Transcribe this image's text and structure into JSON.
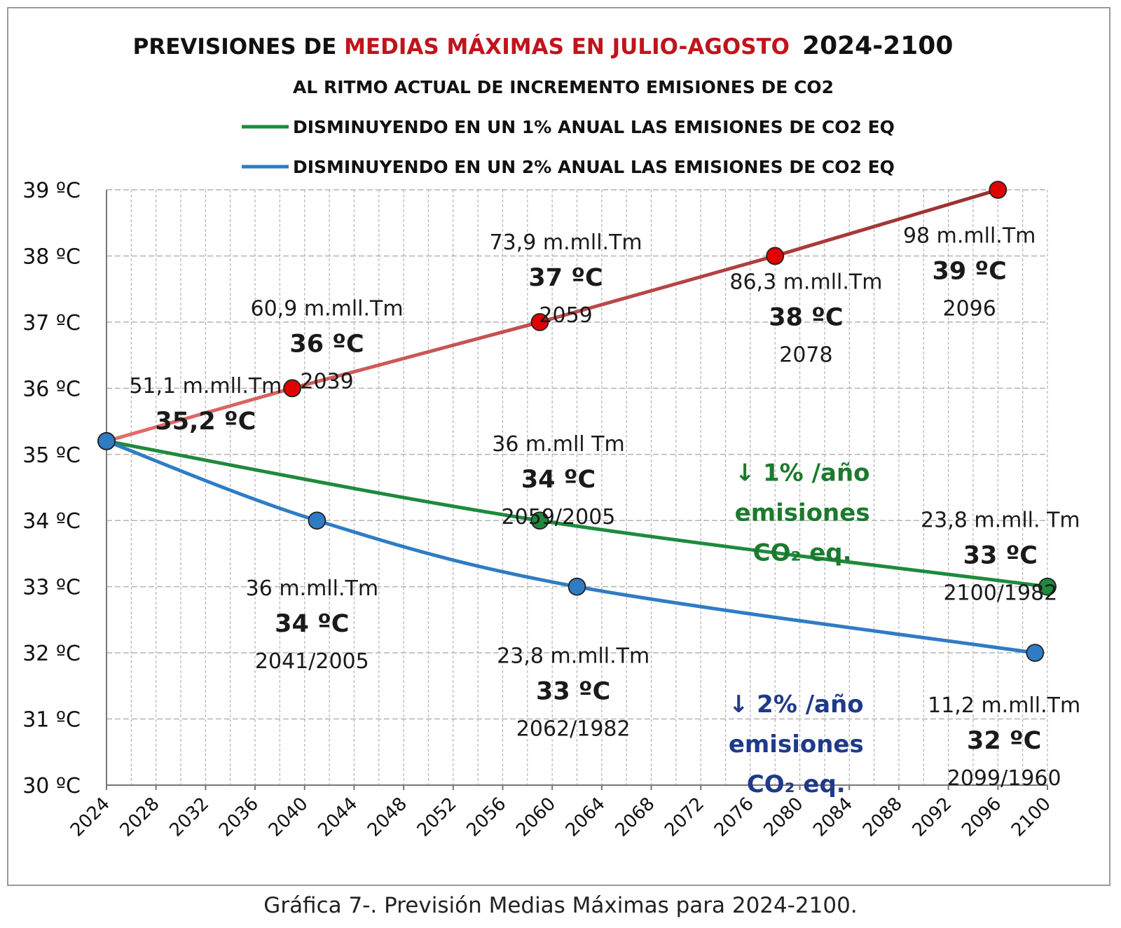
{
  "caption": "Gráfica 7-. Previsión Medias Máximas para 2024-2100.",
  "colors": {
    "red_line_start": "#e46c6c",
    "red_line_end": "#9a2e2e",
    "red_marker": "#e00000",
    "green": "#1e8a3c",
    "green_text": "#1c7a2e",
    "blue": "#2f7cc4",
    "blue_text": "#1f3a8a",
    "title_red": "#c0141c",
    "grid": "#b4b4b4"
  },
  "chart_data": {
    "type": "line",
    "title": {
      "part1": "PREVISIONES DE ",
      "part2": "MEDIAS MÁXIMAS EN JULIO-AGOSTO",
      "part3": "2024-2100"
    },
    "xlim": [
      2024,
      2100
    ],
    "ylim": [
      30,
      39
    ],
    "x_ticks": [
      2024,
      2028,
      2032,
      2036,
      2040,
      2044,
      2048,
      2052,
      2056,
      2060,
      2064,
      2068,
      2072,
      2076,
      2080,
      2084,
      2088,
      2092,
      2096,
      2100
    ],
    "y_ticks": [
      {
        "value": 39,
        "label": "39 ºC"
      },
      {
        "value": 38,
        "label": "38 ºC"
      },
      {
        "value": 37,
        "label": "37 ºC"
      },
      {
        "value": 36,
        "label": "36 ºC"
      },
      {
        "value": 35,
        "label": "35 ºC"
      },
      {
        "value": 34,
        "label": "34 ºC"
      },
      {
        "value": 33,
        "label": "33 ºC"
      },
      {
        "value": 32,
        "label": "32 ºC"
      },
      {
        "value": 31,
        "label": "31 ºC"
      },
      {
        "value": 30,
        "label": "30 ºC"
      }
    ],
    "legend": [
      {
        "series": "red",
        "label": "AL RITMO ACTUAL DE INCREMENTO EMISIONES DE CO2"
      },
      {
        "series": "green",
        "label": "DISMINUYENDO EN UN 1% ANUAL LAS EMISIONES DE CO2 EQ"
      },
      {
        "series": "blue",
        "label": "DISMINUYENDO EN UN 2% ANUAL LAS EMISIONES DE CO2 EQ"
      }
    ],
    "series": [
      {
        "name": "red",
        "x": [
          2024,
          2039,
          2059,
          2078,
          2096
        ],
        "y": [
          35.2,
          36,
          37,
          38,
          39
        ]
      },
      {
        "name": "green",
        "x": [
          2024,
          2059,
          2100
        ],
        "y": [
          35.2,
          34,
          33
        ]
      },
      {
        "name": "blue",
        "x": [
          2024,
          2041,
          2062,
          2099
        ],
        "y": [
          35.2,
          34,
          33,
          32
        ]
      }
    ],
    "annotations": [
      {
        "id": "a1",
        "color": "dark",
        "x": 2032,
        "y": 35.93,
        "lines": [
          {
            "text": "51,1 m.mll.Tm",
            "bold": false
          },
          {
            "text": "35,2 ºC",
            "bold": true
          }
        ]
      },
      {
        "id": "a2",
        "color": "dark",
        "x": 2041.8,
        "y": 37.1,
        "lines": [
          {
            "text": "60,9 m.mll.Tm",
            "bold": false
          },
          {
            "text": "36 ºC",
            "bold": true
          },
          {
            "text": "2039",
            "bold": false
          }
        ]
      },
      {
        "id": "a3",
        "color": "dark",
        "x": 2061.1,
        "y": 38.1,
        "lines": [
          {
            "text": "73,9 m.mll.Tm",
            "bold": false
          },
          {
            "text": "37 ºC",
            "bold": true
          },
          {
            "text": "2059",
            "bold": false
          }
        ]
      },
      {
        "id": "a4",
        "color": "dark",
        "x": 2080.5,
        "y": 37.5,
        "lines": [
          {
            "text": "86,3 m.mll.Tm",
            "bold": false
          },
          {
            "text": "38 ºC",
            "bold": true
          },
          {
            "text": "2078",
            "bold": false
          }
        ]
      },
      {
        "id": "a5",
        "color": "dark",
        "x": 2093.7,
        "y": 38.2,
        "lines": [
          {
            "text": "98 m.mll.Tm",
            "bold": false
          },
          {
            "text": "39 ºC",
            "bold": true
          },
          {
            "text": "2096",
            "bold": false
          }
        ]
      },
      {
        "id": "a6",
        "color": "dark",
        "x": 2060.5,
        "y": 35.05,
        "lines": [
          {
            "text": "36 m.mll Tm",
            "bold": false
          },
          {
            "text": "34 ºC",
            "bold": true
          },
          {
            "text": "2059/2005",
            "bold": false
          }
        ]
      },
      {
        "id": "a7",
        "color": "dark",
        "x": 2040.6,
        "y": 32.87,
        "lines": [
          {
            "text": "36 m.mll.Tm",
            "bold": false
          },
          {
            "text": "34 ºC",
            "bold": true
          },
          {
            "text": "2041/2005",
            "bold": false
          }
        ]
      },
      {
        "id": "a8",
        "color": "dark",
        "x": 2061.7,
        "y": 31.85,
        "lines": [
          {
            "text": "23,8 m.mll.Tm",
            "bold": false
          },
          {
            "text": "33 ºC",
            "bold": true
          },
          {
            "text": "2062/1982",
            "bold": false
          }
        ]
      },
      {
        "id": "a9",
        "color": "dark",
        "x": 2096.2,
        "y": 33.9,
        "lines": [
          {
            "text": "23,8 m.mll. Tm",
            "bold": false
          },
          {
            "text": "33 ºC",
            "bold": true
          },
          {
            "text": "2100/1982",
            "bold": false
          }
        ]
      },
      {
        "id": "a10",
        "color": "dark",
        "x": 2096.5,
        "y": 31.1,
        "lines": [
          {
            "text": "11,2 m.mll.Tm",
            "bold": false
          },
          {
            "text": "32 ºC",
            "bold": true
          },
          {
            "text": "2099/1960",
            "bold": false
          }
        ]
      },
      {
        "id": "g1",
        "color": "green",
        "x": 2080.2,
        "y": 34.6,
        "lines": [
          {
            "text": "↓ 1% /año",
            "bold": true
          },
          {
            "text": "emisiones",
            "bold": true
          },
          {
            "text": "CO₂ eq.",
            "bold": true
          }
        ]
      },
      {
        "id": "b1",
        "color": "blue",
        "x": 2079.7,
        "y": 31.1,
        "lines": [
          {
            "text": "↓ 2% /año",
            "bold": true
          },
          {
            "text": "emisiones",
            "bold": true
          },
          {
            "text": "CO₂ eq.",
            "bold": true
          }
        ]
      }
    ]
  }
}
